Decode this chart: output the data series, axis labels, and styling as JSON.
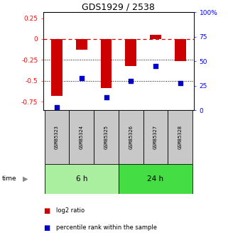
{
  "title": "GDS1929 / 2538",
  "samples": [
    "GSM85323",
    "GSM85324",
    "GSM85325",
    "GSM85326",
    "GSM85327",
    "GSM85328"
  ],
  "log2_ratio": [
    -0.68,
    -0.13,
    -0.585,
    -0.32,
    0.055,
    -0.265
  ],
  "percentile_rank": [
    3,
    33,
    13,
    30,
    45,
    28
  ],
  "ylim_left": [
    -0.85,
    0.32
  ],
  "ylim_right": [
    0,
    100
  ],
  "left_ticks": [
    0.25,
    0,
    -0.25,
    -0.5,
    -0.75
  ],
  "right_ticks": [
    100,
    75,
    50,
    25,
    0
  ],
  "groups": [
    {
      "label": "6 h",
      "indices": [
        0,
        1,
        2
      ],
      "color": "#AAEEA0"
    },
    {
      "label": "24 h",
      "indices": [
        3,
        4,
        5
      ],
      "color": "#44DD44"
    }
  ],
  "bar_color": "#CC0000",
  "point_color": "#0000CC",
  "dashed_line_color": "#CC0000",
  "grid_color": "#000000",
  "bg_color": "#FFFFFF",
  "label_bg": "#C8C8C8"
}
